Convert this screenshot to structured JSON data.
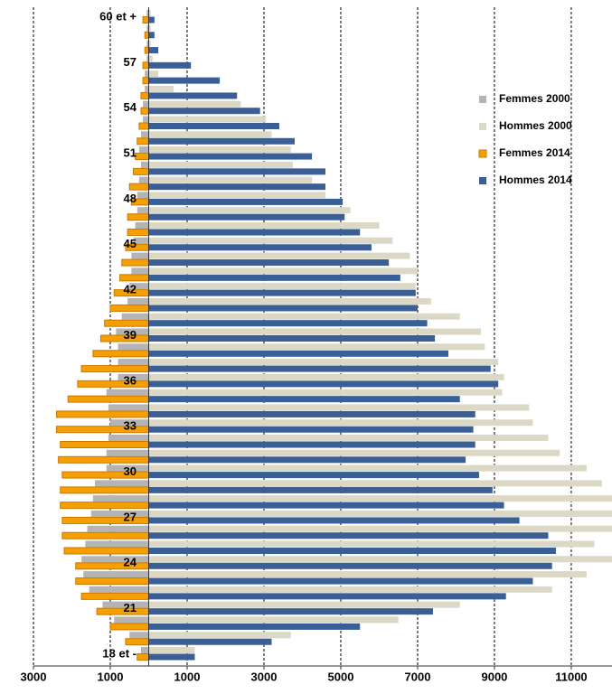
{
  "chart_data": {
    "type": "pyramid",
    "categories": [
      "18 et -",
      null,
      null,
      "21",
      null,
      null,
      "24",
      null,
      null,
      "27",
      null,
      null,
      "30",
      null,
      null,
      "33",
      null,
      null,
      "36",
      null,
      null,
      "39",
      null,
      null,
      "42",
      null,
      null,
      "45",
      null,
      null,
      "48",
      null,
      null,
      "51",
      null,
      null,
      "54",
      null,
      null,
      "57",
      null,
      null,
      "60 et +"
    ],
    "series": [
      {
        "name": "Femmes 2000",
        "color": "#b4b4b4",
        "group": "2000",
        "values": [
          -200,
          -500,
          -900,
          -1200,
          -1550,
          -1700,
          -1750,
          -1650,
          -1600,
          -1500,
          -1450,
          -1400,
          -1100,
          -1100,
          -1050,
          -1000,
          -1050,
          -1100,
          -800,
          -800,
          -800,
          -850,
          -700,
          -550,
          -500,
          -450,
          -450,
          -400,
          -350,
          -300,
          -300,
          -250,
          -200,
          -250,
          -200,
          -150,
          -150,
          -100,
          -100,
          -50,
          -50,
          -50,
          -50
        ]
      },
      {
        "name": "Hommes 2000",
        "color": "#dcd8c6",
        "group": "2000",
        "values": [
          1200,
          3700,
          6500,
          8100,
          10500,
          11400,
          12100,
          11600,
          12100,
          12100,
          12100,
          11800,
          11400,
          10700,
          10400,
          10000,
          9900,
          9200,
          9250,
          9100,
          8750,
          8650,
          8100,
          7350,
          6950,
          7000,
          6800,
          6350,
          6000,
          5250,
          4600,
          4250,
          3750,
          3700,
          3200,
          3050,
          2400,
          650,
          250,
          100,
          50,
          50,
          50
        ]
      },
      {
        "name": "Femmes 2014",
        "color": "#f5a000",
        "group": "2014",
        "values": [
          -300,
          -600,
          -1000,
          -1350,
          -1750,
          -1900,
          -1900,
          -2200,
          -2250,
          -2250,
          -2300,
          -2300,
          -2250,
          -2350,
          -2300,
          -2400,
          -2400,
          -2100,
          -1850,
          -1750,
          -1450,
          -1250,
          -1150,
          -1000,
          -900,
          -750,
          -700,
          -600,
          -550,
          -550,
          -450,
          -500,
          -400,
          -350,
          -300,
          -250,
          -200,
          -200,
          -150,
          -150,
          -100,
          -100,
          -150
        ]
      },
      {
        "name": "Hommes 2014",
        "color": "#3a5f96",
        "group": "2014",
        "values": [
          1200,
          3200,
          5500,
          7400,
          9300,
          10000,
          10500,
          10600,
          10400,
          9650,
          9250,
          8950,
          8600,
          8250,
          8500,
          8450,
          8500,
          8100,
          9100,
          8900,
          7800,
          7450,
          7250,
          7000,
          6950,
          6550,
          6250,
          5800,
          5500,
          5100,
          5050,
          4600,
          4600,
          4250,
          3800,
          3400,
          2900,
          2300,
          1850,
          1100,
          250,
          150,
          150
        ]
      }
    ],
    "xlim": [
      -3000,
      12060
    ],
    "xticks": [
      {
        "value": -3000,
        "label": "3000"
      },
      {
        "value": -1000,
        "label": "1000"
      },
      1000,
      3000,
      5000,
      7000,
      9000,
      11000
    ],
    "grid": true,
    "legend": "right"
  }
}
